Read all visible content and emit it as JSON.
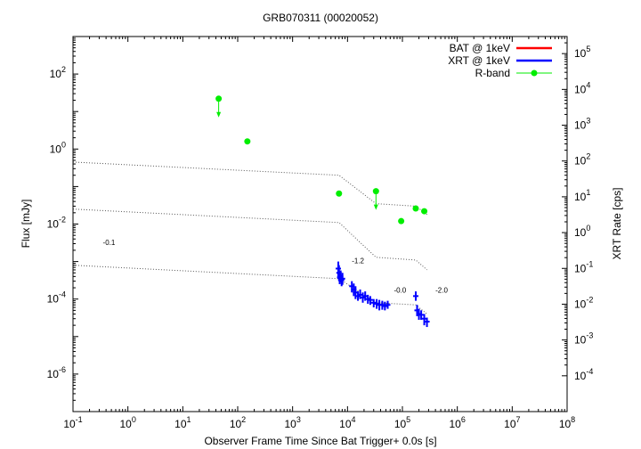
{
  "chart_data": {
    "type": "scatter",
    "title": "GRB070311 (00020052)",
    "xlabel": "Observer Frame Time Since Bat Trigger+ 0.0s [s]",
    "ylabel": "Flux [mJy]",
    "y2label": "XRT Rate [cps]",
    "xscale": "log",
    "yscale": "log",
    "xlim": [
      0.1,
      100000000
    ],
    "ylim": [
      1e-07,
      1000
    ],
    "y2lim": [
      1e-05,
      300000
    ],
    "x_ticks": [
      {
        "v": 0.1,
        "m": "10",
        "e": "-1"
      },
      {
        "v": 1,
        "m": "10",
        "e": "0"
      },
      {
        "v": 10,
        "m": "10",
        "e": "1"
      },
      {
        "v": 100,
        "m": "10",
        "e": "2"
      },
      {
        "v": 1000,
        "m": "10",
        "e": "3"
      },
      {
        "v": 10000,
        "m": "10",
        "e": "4"
      },
      {
        "v": 100000,
        "m": "10",
        "e": "5"
      },
      {
        "v": 1000000,
        "m": "10",
        "e": "6"
      },
      {
        "v": 10000000,
        "m": "10",
        "e": "7"
      },
      {
        "v": 100000000,
        "m": "10",
        "e": "8"
      }
    ],
    "y_ticks": [
      {
        "v": 100,
        "m": "10",
        "e": "2"
      },
      {
        "v": 1,
        "m": "10",
        "e": "0"
      },
      {
        "v": 0.01,
        "m": "10",
        "e": "-2"
      },
      {
        "v": 0.0001,
        "m": "10",
        "e": "-4"
      },
      {
        "v": 1e-06,
        "m": "10",
        "e": "-6"
      }
    ],
    "y2_ticks": [
      {
        "v": 100000,
        "m": "10",
        "e": "5"
      },
      {
        "v": 10000,
        "m": "10",
        "e": "4"
      },
      {
        "v": 1000,
        "m": "10",
        "e": "3"
      },
      {
        "v": 100,
        "m": "10",
        "e": "2"
      },
      {
        "v": 10,
        "m": "10",
        "e": "1"
      },
      {
        "v": 1,
        "m": "10",
        "e": "0"
      },
      {
        "v": 0.1,
        "m": "10",
        "e": "-1"
      },
      {
        "v": 0.01,
        "m": "10",
        "e": "-2"
      },
      {
        "v": 0.001,
        "m": "10",
        "e": "-3"
      },
      {
        "v": 0.0001,
        "m": "10",
        "e": "-4"
      }
    ],
    "legend": {
      "placement": "top-right",
      "entries": [
        {
          "name": "BAT @ 1keV",
          "color": "#ff0000",
          "style": "line"
        },
        {
          "name": "XRT @ 1keV",
          "color": "#0000ff",
          "style": "line"
        },
        {
          "name": "R-band",
          "color": "#00ee00",
          "style": "point"
        }
      ]
    },
    "series": [
      {
        "name": "R-band",
        "color": "#00ee00",
        "points": [
          {
            "x": 45,
            "y": 22,
            "upper_limit": true
          },
          {
            "x": 150,
            "y": 1.6,
            "upper_limit": false
          },
          {
            "x": 7000,
            "y": 0.065,
            "upper_limit": false
          },
          {
            "x": 33000,
            "y": 0.075,
            "upper_limit": true
          },
          {
            "x": 95000,
            "y": 0.012,
            "upper_limit": false
          },
          {
            "x": 175000,
            "y": 0.026,
            "upper_limit": false
          },
          {
            "x": 250000,
            "y": 0.022,
            "upper_limit": false
          }
        ]
      },
      {
        "name": "XRT @ 1keV",
        "color": "#0000ff",
        "points": [
          {
            "x": 6800,
            "y": 0.00065,
            "ylo": 0.00035,
            "yhi": 0.001
          },
          {
            "x": 7000,
            "y": 0.0005,
            "ylo": 0.0003,
            "yhi": 0.0008
          },
          {
            "x": 7200,
            "y": 0.00038,
            "ylo": 0.00025,
            "yhi": 0.00055
          },
          {
            "x": 7500,
            "y": 0.0004,
            "ylo": 0.00028,
            "yhi": 0.00058
          },
          {
            "x": 7800,
            "y": 0.00032,
            "ylo": 0.00022,
            "yhi": 0.00045
          },
          {
            "x": 8100,
            "y": 0.00035,
            "ylo": 0.00024,
            "yhi": 0.0005
          },
          {
            "x": 12000,
            "y": 0.00022,
            "ylo": 0.00015,
            "yhi": 0.0003
          },
          {
            "x": 13000,
            "y": 0.00018,
            "ylo": 0.00012,
            "yhi": 0.00026
          },
          {
            "x": 14000,
            "y": 0.00015,
            "ylo": 0.0001,
            "yhi": 0.00022
          },
          {
            "x": 15500,
            "y": 0.00012,
            "ylo": 9e-05,
            "yhi": 0.00016
          },
          {
            "x": 17000,
            "y": 0.00013,
            "ylo": 0.0001,
            "yhi": 0.00018
          },
          {
            "x": 19000,
            "y": 0.00011,
            "ylo": 8e-05,
            "yhi": 0.00015
          },
          {
            "x": 21000,
            "y": 0.00012,
            "ylo": 9e-05,
            "yhi": 0.00016
          },
          {
            "x": 23500,
            "y": 0.0001,
            "ylo": 7.5e-05,
            "yhi": 0.00013
          },
          {
            "x": 26000,
            "y": 9.5e-05,
            "ylo": 7e-05,
            "yhi": 0.00012
          },
          {
            "x": 30000,
            "y": 8e-05,
            "ylo": 6e-05,
            "yhi": 0.0001
          },
          {
            "x": 34000,
            "y": 7.5e-05,
            "ylo": 5.5e-05,
            "yhi": 0.0001
          },
          {
            "x": 38000,
            "y": 7e-05,
            "ylo": 5e-05,
            "yhi": 9.5e-05
          },
          {
            "x": 43000,
            "y": 7e-05,
            "ylo": 5.2e-05,
            "yhi": 9e-05
          },
          {
            "x": 48000,
            "y": 6.5e-05,
            "ylo": 5e-05,
            "yhi": 8.5e-05
          },
          {
            "x": 54000,
            "y": 7e-05,
            "ylo": 5.5e-05,
            "yhi": 9e-05
          },
          {
            "x": 175000,
            "y": 0.00012,
            "ylo": 9e-05,
            "yhi": 0.00016
          },
          {
            "x": 185000,
            "y": 5e-05,
            "ylo": 3.5e-05,
            "yhi": 7e-05
          },
          {
            "x": 200000,
            "y": 4e-05,
            "ylo": 2.8e-05,
            "yhi": 5.5e-05
          },
          {
            "x": 220000,
            "y": 3.8e-05,
            "ylo": 2.8e-05,
            "yhi": 5e-05
          },
          {
            "x": 250000,
            "y": 3e-05,
            "ylo": 2e-05,
            "yhi": 4e-05
          },
          {
            "x": 280000,
            "y": 2.5e-05,
            "ylo": 1.8e-05,
            "yhi": 3.2e-05
          }
        ]
      }
    ],
    "model_lines": [
      {
        "color": "#555555",
        "points": [
          [
            0.1,
            0.45
          ],
          [
            7000,
            0.2
          ],
          [
            33000,
            0.035
          ],
          [
            175000,
            0.03
          ],
          [
            280000,
            0.018
          ]
        ]
      },
      {
        "color": "#555555",
        "points": [
          [
            0.1,
            0.025
          ],
          [
            7000,
            0.011
          ],
          [
            33000,
            0.0013
          ],
          [
            175000,
            0.0011
          ],
          [
            280000,
            0.0006
          ]
        ]
      },
      {
        "color": "#555555",
        "points": [
          [
            0.1,
            0.0008
          ],
          [
            7000,
            0.00035
          ],
          [
            33000,
            8e-05
          ],
          [
            175000,
            7e-05
          ],
          [
            280000,
            4e-05
          ]
        ]
      }
    ],
    "annotations": [
      {
        "text": "-0.1",
        "x": 0.35,
        "y": 0.0028
      },
      {
        "text": "-1.2",
        "x": 12000,
        "y": 0.0009
      },
      {
        "text": "-0.0",
        "x": 70000,
        "y": 0.00015
      },
      {
        "text": "-2.0",
        "x": 400000,
        "y": 0.00015
      }
    ]
  }
}
